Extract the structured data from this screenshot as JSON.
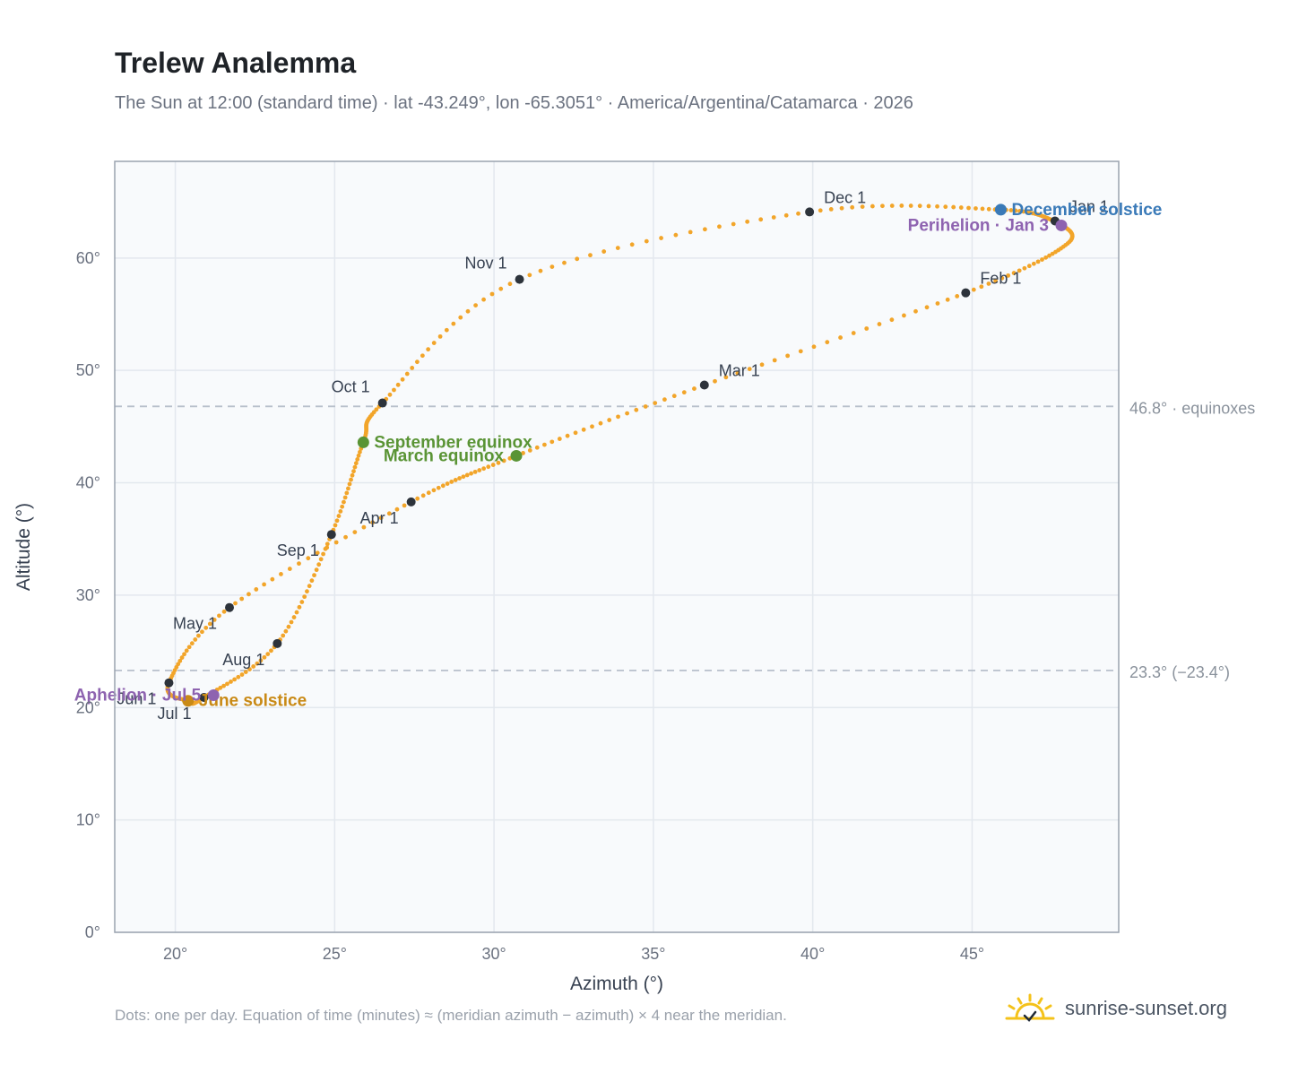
{
  "header": {
    "title": "Trelew Analemma",
    "subtitle": "The Sun at 12:00 (standard time) · lat -43.249°, lon -65.3051° · America/Argentina/Catamarca · 2026"
  },
  "footer": {
    "note": "Dots: one per day. Equation of time (minutes) ≈ (meridian azimuth − azimuth) × 4 near the meridian.",
    "brand": "sunrise-sunset.org"
  },
  "chart_data": {
    "type": "scatter",
    "xlabel": "Azimuth (°)",
    "ylabel": "Altitude (°)",
    "xlim": [
      18.1,
      49.6
    ],
    "ylim": [
      0,
      68.6
    ],
    "xticks": [
      20,
      25,
      30,
      35,
      40,
      45
    ],
    "yticks": [
      0,
      10,
      20,
      30,
      40,
      50,
      60
    ],
    "xtick_labels": [
      "20°",
      "25°",
      "30°",
      "35°",
      "40°",
      "45°"
    ],
    "ytick_labels": [
      "0°",
      "10°",
      "20°",
      "30°",
      "40°",
      "50°",
      "60°"
    ],
    "grid": true,
    "colors": {
      "path": "#f2a52a",
      "month": "#2d333b",
      "solstice_dec": "#3a7ab8",
      "solstice_jun": "#c98a16",
      "equinox": "#5a9435",
      "apsis": "#8e63b0",
      "reference": "#b8c0cb",
      "plot_bg": "#f8fafc",
      "frame": "#9aa3af"
    },
    "path_anchors": [
      {
        "date": "Jan 1",
        "az": 47.6,
        "alt": 63.3
      },
      {
        "date": "Jan 16",
        "az": 48.0,
        "alt": 61.3
      },
      {
        "date": "Feb 1",
        "az": 44.8,
        "alt": 56.9
      },
      {
        "date": "Mar 1",
        "az": 36.6,
        "alt": 48.7
      },
      {
        "date": "Mar 20",
        "az": 30.7,
        "alt": 42.4
      },
      {
        "date": "Apr 1",
        "az": 27.4,
        "alt": 38.3
      },
      {
        "date": "May 1",
        "az": 21.7,
        "alt": 28.9
      },
      {
        "date": "Jun 1",
        "az": 19.8,
        "alt": 22.2
      },
      {
        "date": "Jun 21",
        "az": 20.4,
        "alt": 20.6
      },
      {
        "date": "Jul 1",
        "az": 20.9,
        "alt": 20.9
      },
      {
        "date": "Aug 1",
        "az": 23.2,
        "alt": 25.7
      },
      {
        "date": "Sep 1",
        "az": 24.9,
        "alt": 35.4
      },
      {
        "date": "Sep 22",
        "az": 25.9,
        "alt": 43.6
      },
      {
        "date": "Oct 1",
        "az": 26.5,
        "alt": 47.1
      },
      {
        "date": "Nov 1",
        "az": 30.8,
        "alt": 58.1
      },
      {
        "date": "Dec 1",
        "az": 39.9,
        "alt": 64.1
      },
      {
        "date": "Dec 21",
        "az": 45.9,
        "alt": 64.3
      },
      {
        "date": "Dec 31",
        "az": 47.6,
        "alt": 63.3
      }
    ],
    "months": [
      {
        "label": "Jan 1",
        "az": 47.6,
        "alt": 63.3,
        "pos": "above-right"
      },
      {
        "label": "Feb 1",
        "az": 44.8,
        "alt": 56.9,
        "pos": "above-right"
      },
      {
        "label": "Mar 1",
        "az": 36.6,
        "alt": 48.7,
        "pos": "above-right"
      },
      {
        "label": "Apr 1",
        "az": 27.4,
        "alt": 38.3,
        "pos": "below-left"
      },
      {
        "label": "May 1",
        "az": 21.7,
        "alt": 28.9,
        "pos": "below-left"
      },
      {
        "label": "Jun 1",
        "az": 19.8,
        "alt": 22.2,
        "pos": "below-left"
      },
      {
        "label": "Jul 1",
        "az": 20.9,
        "alt": 20.9,
        "pos": "below-left"
      },
      {
        "label": "Aug 1",
        "az": 23.2,
        "alt": 25.7,
        "pos": "below-left"
      },
      {
        "label": "Sep 1",
        "az": 24.9,
        "alt": 35.4,
        "pos": "below-left"
      },
      {
        "label": "Oct 1",
        "az": 26.5,
        "alt": 47.1,
        "pos": "above-left"
      },
      {
        "label": "Nov 1",
        "az": 30.8,
        "alt": 58.1,
        "pos": "above-left"
      },
      {
        "label": "Dec 1",
        "az": 39.9,
        "alt": 64.1,
        "pos": "above-right"
      }
    ],
    "events": [
      {
        "label": "December solstice",
        "az": 45.9,
        "alt": 64.3,
        "color": "#3a7ab8",
        "pos": "right"
      },
      {
        "label": "Perihelion · Jan 3",
        "az": 47.8,
        "alt": 62.9,
        "color": "#8e63b0",
        "pos": "left"
      },
      {
        "label": "September equinox",
        "az": 25.9,
        "alt": 43.6,
        "color": "#5a9435",
        "pos": "right"
      },
      {
        "label": "March equinox",
        "az": 30.7,
        "alt": 42.4,
        "color": "#5a9435",
        "pos": "left"
      },
      {
        "label": "June solstice",
        "az": 20.4,
        "alt": 20.6,
        "color": "#c98a16",
        "pos": "right"
      },
      {
        "label": "Aphelion · Jul 5",
        "az": 21.2,
        "alt": 21.1,
        "color": "#8e63b0",
        "pos": "left"
      }
    ],
    "reference_lines": [
      {
        "alt": 46.8,
        "label": "46.8° · equinoxes"
      },
      {
        "alt": 23.3,
        "label": "23.3° (−23.4°)"
      }
    ]
  }
}
